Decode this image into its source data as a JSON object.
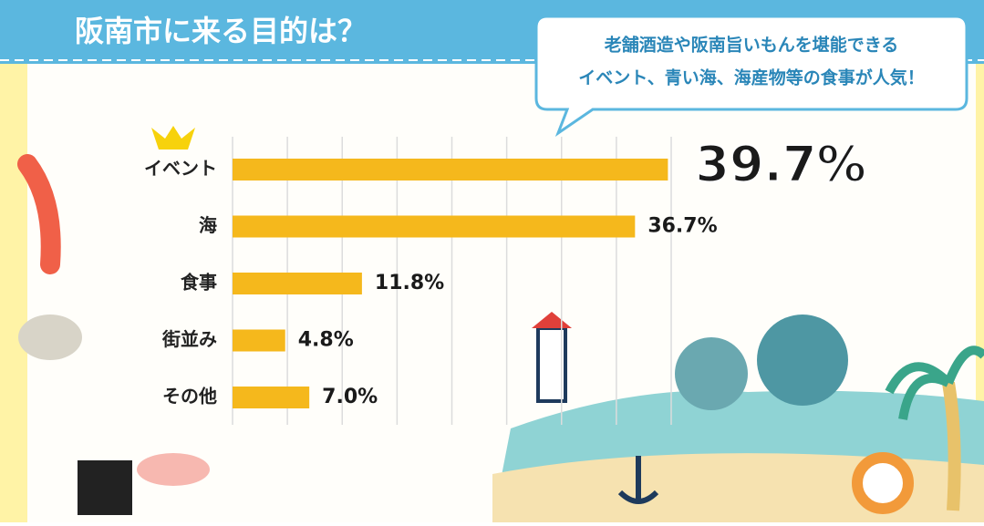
{
  "chart_data": {
    "type": "hbar",
    "title": "阪南市に来る目的は？",
    "annotation": [
      "老舗酒造や阪南旨いもんを堪能できる",
      "イベント、青い海、海産物等の食事が人気！"
    ],
    "categories": [
      "イベント",
      "海",
      "食事",
      "街並み",
      "その他"
    ],
    "values": [
      39.7,
      36.7,
      11.8,
      4.8,
      7.0
    ],
    "value_labels": [
      "39.7%",
      "36.7%",
      "11.8%",
      "4.8%",
      "7.0%"
    ],
    "color": "#f5b81c",
    "xlim": [
      0,
      40
    ],
    "xticks": [
      0,
      5,
      10,
      15,
      20,
      25,
      30,
      35,
      40
    ],
    "grid": true
  }
}
